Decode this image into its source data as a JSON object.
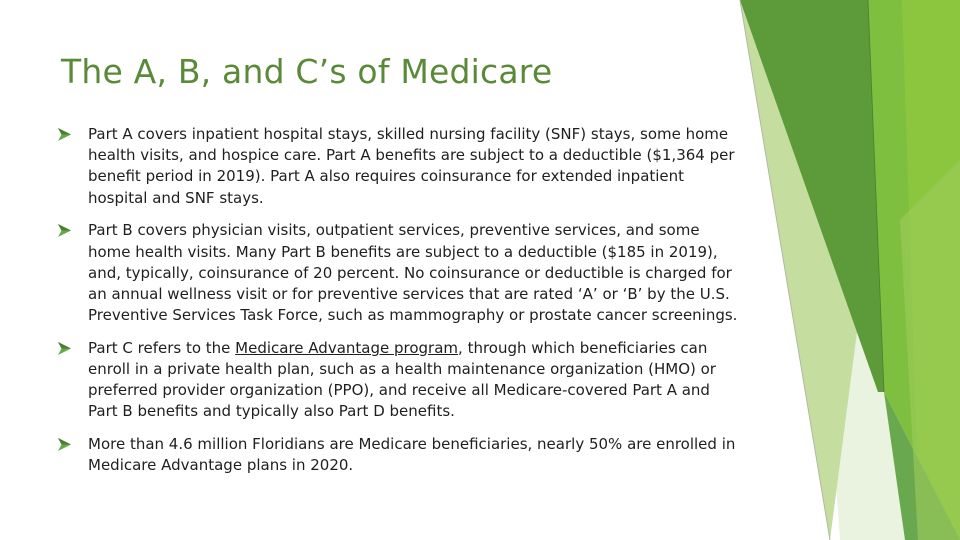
{
  "slide": {
    "title": "The A, B, and C’s of Medicare",
    "accent_color": "#6aa84f",
    "bullet_icon": "diamond-arrow-icon",
    "bullets": [
      {
        "text": "Part A covers inpatient hospital stays, skilled nursing facility (SNF) stays, some home health visits, and hospice care. Part A benefits are subject to a deductible ($1,364 per benefit period in 2019). Part A also requires coinsurance for extended inpatient hospital and SNF stays."
      },
      {
        "text": "Part B covers physician visits, outpatient services, preventive services, and some home health visits. Many Part B benefits are subject to a deductible ($185 in 2019), and, typically, coinsurance of 20 percent. No coinsurance or deductible is charged for an annual wellness visit or for preventive services that are rated ‘A’ or ‘B’ by the U.S. Preventive Services Task Force, such as mammography or prostate cancer screenings."
      },
      {
        "text_before": "Part C refers to the ",
        "link": "Medicare Advantage program",
        "text_after": ", through which beneficiaries can enroll in a private health plan, such as a health maintenance organization (HMO) or preferred provider organization (PPO), and receive all Medicare-covered Part A and Part B benefits and typically also Part D benefits."
      },
      {
        "text": "More than 4.6 million Floridians are Medicare beneficiaries, nearly 50% are enrolled in Medicare Advantage plans in 2020."
      }
    ]
  }
}
